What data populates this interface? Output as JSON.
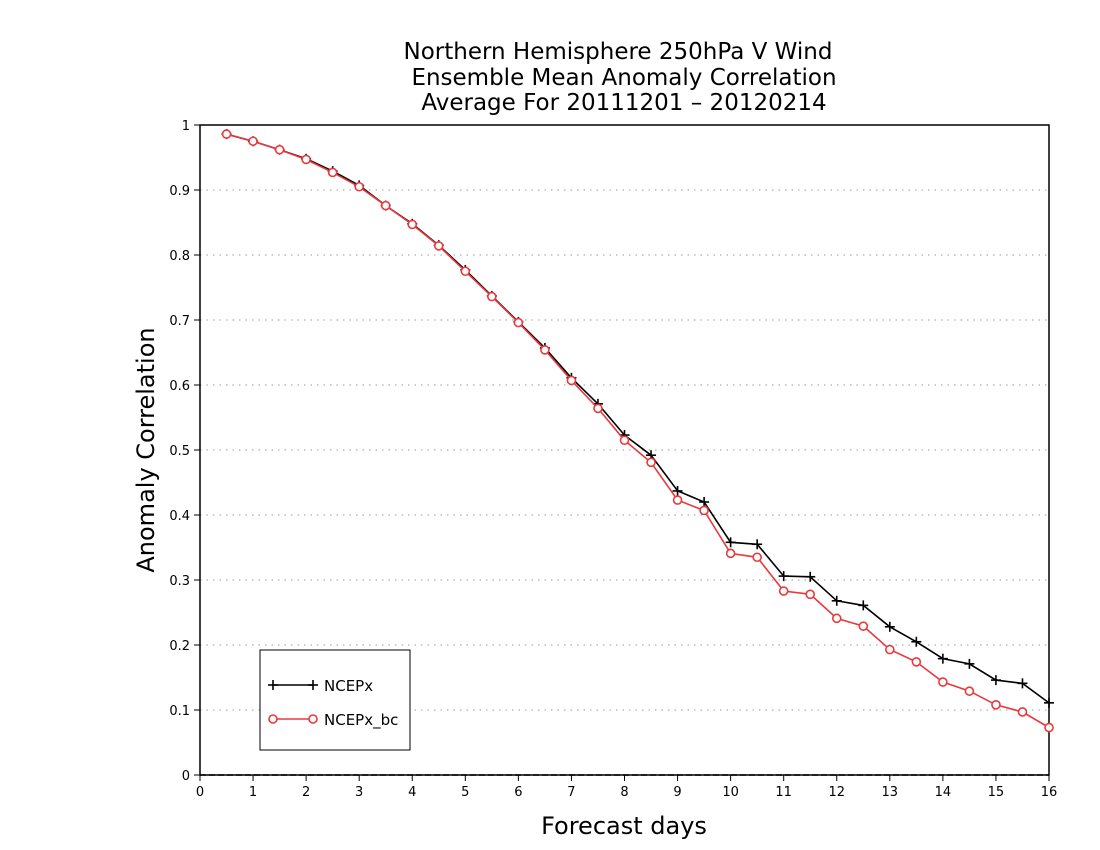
{
  "chart_data": {
    "type": "line",
    "title": [
      "Northern Hemisphere 250hPa V Wind",
      "Ensemble Mean Anomaly Correlation",
      "Average For 20111201 – 20120214"
    ],
    "xlabel": "Forecast days",
    "ylabel": "Anomaly Correlation",
    "xlim": [
      0,
      16
    ],
    "ylim": [
      0,
      1
    ],
    "xticks": [
      "0",
      "1",
      "2",
      "3",
      "4",
      "5",
      "6",
      "7",
      "8",
      "9",
      "10",
      "11",
      "12",
      "13",
      "14",
      "15",
      "16"
    ],
    "yticks": [
      "0",
      "0.1",
      "0.2",
      "0.3",
      "0.4",
      "0.5",
      "0.6",
      "0.7",
      "0.8",
      "0.9",
      "1"
    ],
    "grid": "horizontal dotted",
    "legend_position": "bottom-left",
    "x": [
      0.5,
      1,
      1.5,
      2,
      2.5,
      3,
      3.5,
      4,
      4.5,
      5,
      5.5,
      6,
      6.5,
      7,
      7.5,
      8,
      8.5,
      9,
      9.5,
      10,
      10.5,
      11,
      11.5,
      12,
      12.5,
      13,
      13.5,
      14,
      14.5,
      15,
      15.5,
      16
    ],
    "series": [
      {
        "name": "NCEPx",
        "color": "#000000",
        "marker": "plus",
        "values": [
          0.986,
          0.975,
          0.962,
          0.948,
          0.929,
          0.907,
          0.876,
          0.848,
          0.815,
          0.777,
          0.737,
          0.697,
          0.657,
          0.611,
          0.571,
          0.523,
          0.492,
          0.437,
          0.42,
          0.358,
          0.355,
          0.306,
          0.305,
          0.268,
          0.261,
          0.228,
          0.205,
          0.179,
          0.171,
          0.146,
          0.141,
          0.111
        ]
      },
      {
        "name": "NCEPx_bc",
        "color": "#e8393e",
        "marker": "circle",
        "values": [
          0.986,
          0.975,
          0.962,
          0.947,
          0.927,
          0.905,
          0.876,
          0.847,
          0.814,
          0.775,
          0.736,
          0.696,
          0.654,
          0.607,
          0.564,
          0.515,
          0.481,
          0.423,
          0.407,
          0.341,
          0.335,
          0.283,
          0.278,
          0.241,
          0.229,
          0.193,
          0.174,
          0.143,
          0.129,
          0.108,
          0.097,
          0.073
        ]
      }
    ]
  }
}
